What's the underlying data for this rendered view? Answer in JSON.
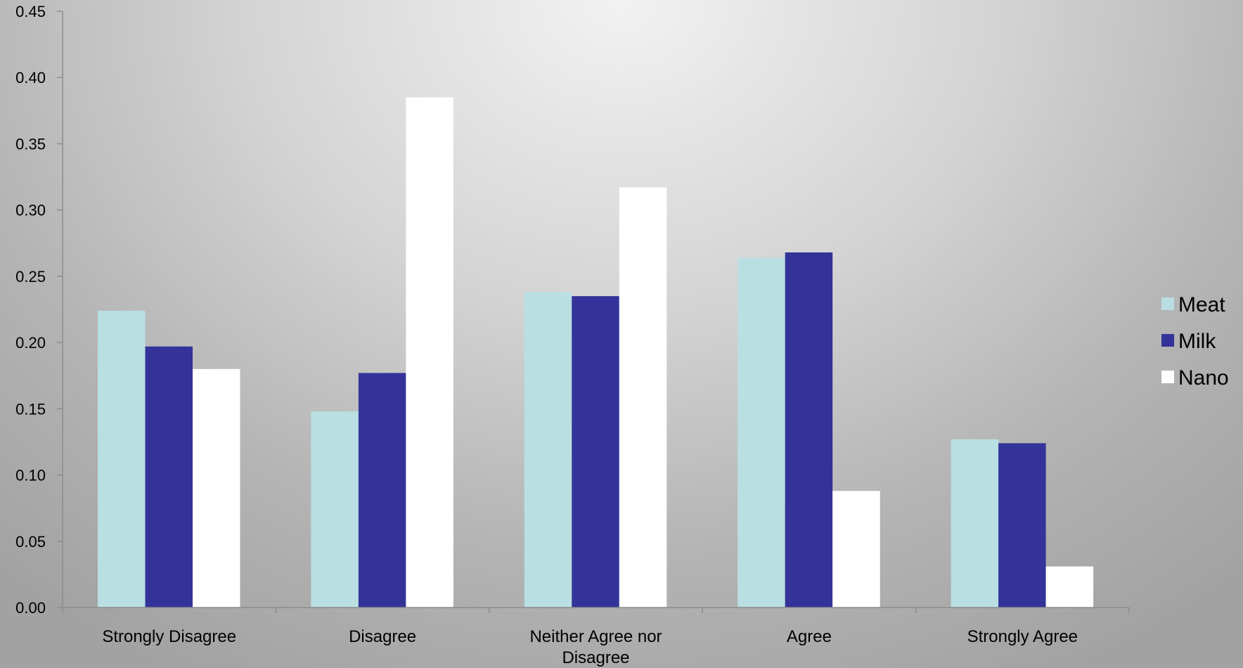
{
  "chart_data": {
    "type": "bar",
    "title": "",
    "xlabel": "",
    "ylabel": "",
    "categories": [
      [
        "Strongly Disagree"
      ],
      [
        "Disagree"
      ],
      [
        "Neither Agree nor",
        "Disagree"
      ],
      [
        "Agree"
      ],
      [
        "Strongly Agree"
      ]
    ],
    "series": [
      {
        "name": "Meat",
        "color": "#b9dfe2",
        "values": [
          0.224,
          0.148,
          0.238,
          0.264,
          0.127
        ]
      },
      {
        "name": "Milk",
        "color": "#333399",
        "values": [
          0.197,
          0.177,
          0.235,
          0.268,
          0.124
        ]
      },
      {
        "name": "Nano",
        "color": "#ffffff",
        "values": [
          0.18,
          0.385,
          0.317,
          0.088,
          0.031
        ]
      }
    ],
    "ylim": [
      0,
      0.45
    ],
    "yticks": [
      "0.00",
      "0.05",
      "0.10",
      "0.15",
      "0.20",
      "0.25",
      "0.30",
      "0.35",
      "0.40",
      "0.45"
    ],
    "grid": false,
    "legend": "right"
  }
}
